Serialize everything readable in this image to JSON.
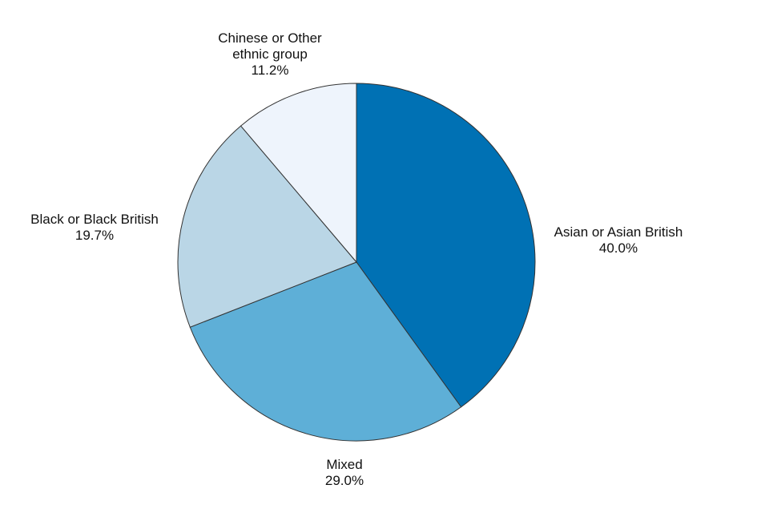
{
  "chart_data": {
    "type": "pie",
    "categories": [
      "Asian or Asian British",
      "Mixed",
      "Black or Black British",
      "Chinese or Other ethnic group"
    ],
    "values": [
      40.0,
      29.0,
      19.7,
      11.2
    ],
    "value_labels": [
      "40.0%",
      "29.0%",
      "19.7%",
      "11.2%"
    ],
    "colors": [
      "#0071b4",
      "#5eafd7",
      "#bad6e6",
      "#eef4fc"
    ]
  }
}
